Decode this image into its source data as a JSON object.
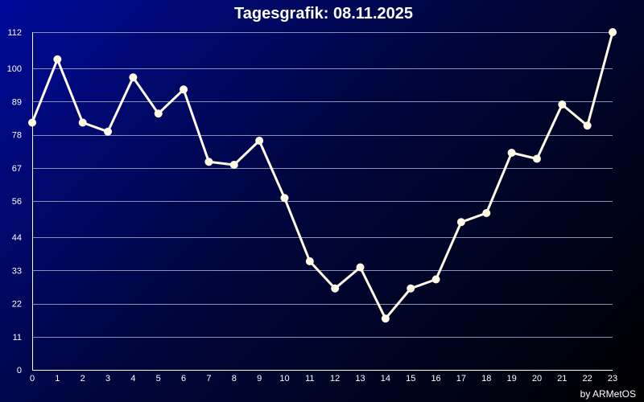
{
  "chart_data": {
    "type": "line",
    "title": "Tagesgrafik: 08.11.2025",
    "x": [
      0,
      1,
      2,
      3,
      4,
      5,
      6,
      7,
      8,
      9,
      10,
      11,
      12,
      13,
      14,
      15,
      16,
      17,
      18,
      19,
      20,
      21,
      22,
      23
    ],
    "x_tick_labels": [
      "0",
      "1",
      "2",
      "3",
      "4",
      "5",
      "6",
      "7",
      "8",
      "9",
      "10",
      "11",
      "12",
      "13",
      "14",
      "15",
      "16",
      "17",
      "18",
      "19",
      "20",
      "21",
      "22",
      "23"
    ],
    "y_tick_values": [
      0,
      11,
      22,
      33,
      44,
      56,
      67,
      78,
      89,
      100,
      112
    ],
    "y_tick_labels": [
      "0",
      "11",
      "22",
      "33",
      "44",
      "56",
      "67",
      "78",
      "89",
      "100",
      "112"
    ],
    "ylim": [
      0,
      112
    ],
    "grid": true,
    "series": [
      {
        "values": [
          82,
          103,
          82,
          79,
          97,
          85,
          93,
          69,
          68,
          76,
          57,
          36,
          27,
          34,
          17,
          27,
          30,
          49,
          52,
          72,
          70,
          88,
          81,
          112
        ]
      }
    ],
    "colors": {
      "line": "#fffbe6",
      "grid": "#8a8fb8"
    }
  },
  "credit": "by ARMetOS"
}
